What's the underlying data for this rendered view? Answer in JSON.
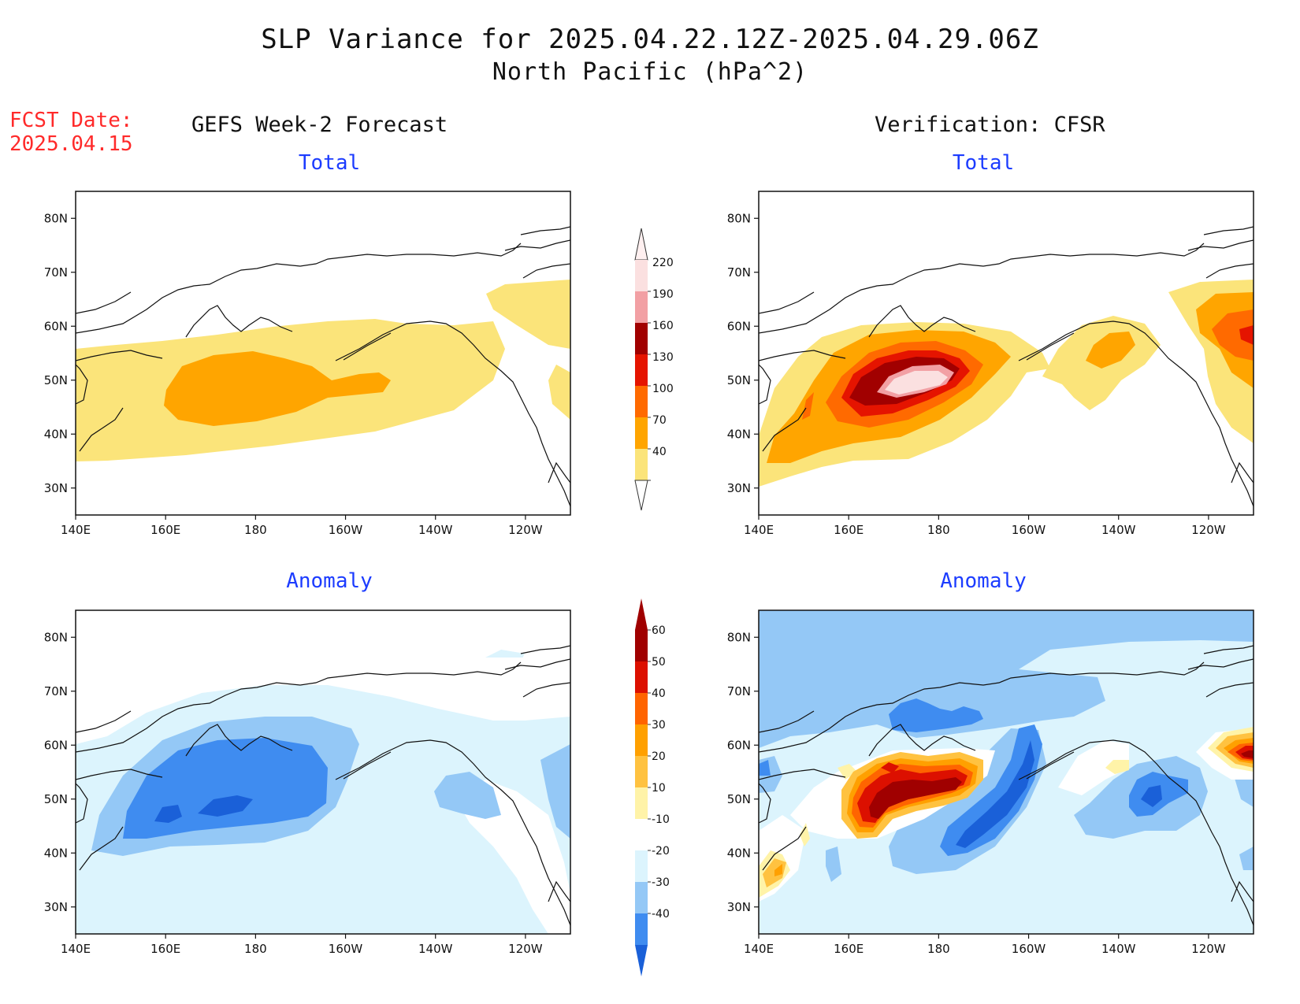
{
  "header": {
    "title": "SLP Variance for 2025.04.22.12Z-2025.04.29.06Z",
    "subtitle": "North Pacific (hPa^2)",
    "fcst_label": "FCST Date:",
    "fcst_date": "2025.04.15"
  },
  "columns": {
    "left": "GEFS Week-2 Forecast",
    "right": "Verification: CFSR"
  },
  "panels": {
    "tl": {
      "title": "Total"
    },
    "tr": {
      "title": "Total"
    },
    "bl": {
      "title": "Anomaly"
    },
    "br": {
      "title": "Anomaly"
    }
  },
  "axes": {
    "x_ticks": [
      {
        "lon": 140,
        "label": "140E"
      },
      {
        "lon": 160,
        "label": "160E"
      },
      {
        "lon": 180,
        "label": "180"
      },
      {
        "lon": 200,
        "label": "160W"
      },
      {
        "lon": 220,
        "label": "140W"
      },
      {
        "lon": 240,
        "label": "120W"
      }
    ],
    "y_ticks": [
      {
        "lat": 80,
        "label": "80N"
      },
      {
        "lat": 70,
        "label": "70N"
      },
      {
        "lat": 60,
        "label": "60N"
      },
      {
        "lat": 50,
        "label": "50N"
      },
      {
        "lat": 40,
        "label": "40N"
      },
      {
        "lat": 30,
        "label": "30N"
      }
    ],
    "lon_range": [
      140,
      250
    ],
    "lat_range": [
      25,
      85
    ]
  },
  "colorbars": {
    "total": {
      "levels": [
        {
          "label": "40",
          "color": "#fbe47a"
        },
        {
          "label": "70",
          "color": "#ffa500"
        },
        {
          "label": "100",
          "color": "#ff6a00"
        },
        {
          "label": "130",
          "color": "#e51400"
        },
        {
          "label": "160",
          "color": "#a10000"
        },
        {
          "label": "190",
          "color": "#f2a0a4"
        },
        {
          "label": "220",
          "color": "#fbe0e0"
        }
      ],
      "top_color": "#fff0f0"
    },
    "anomaly": {
      "bottom_color": "#1a60d8",
      "levels": [
        {
          "label": "-40",
          "color": "#1a60d8"
        },
        {
          "label": "-30",
          "color": "#3f8cf0"
        },
        {
          "label": "-20",
          "color": "#94c8f6"
        },
        {
          "label": "-10",
          "color": "#dcf4fd"
        },
        {
          "label": "10",
          "color": "#ffffff"
        },
        {
          "label": "20",
          "color": "#fff3a8"
        },
        {
          "label": "30",
          "color": "#ffc240"
        },
        {
          "label": "40",
          "color": "#ffa000"
        },
        {
          "label": "50",
          "color": "#ff6400"
        },
        {
          "label": "60",
          "color": "#dc1000"
        }
      ],
      "top_color": "#a00000"
    }
  }
}
